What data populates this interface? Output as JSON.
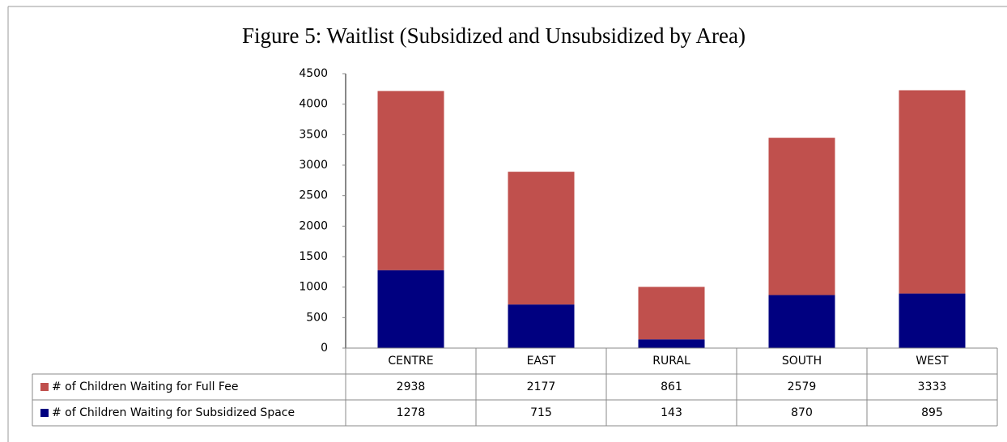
{
  "chart_data": {
    "type": "stacked_bar",
    "title": "Figure 5:  Waitlist (Subsidized and Unsubsidized by Area)",
    "categories": [
      "CENTRE",
      "EAST",
      "RURAL",
      "SOUTH",
      "WEST"
    ],
    "series": [
      {
        "name": "# of Children Waiting for Full Fee",
        "color": "#c0504d",
        "values": [
          2938,
          2177,
          861,
          2579,
          3333
        ]
      },
      {
        "name": "# of Children Waiting for Subsidized Space",
        "color": "#000080",
        "values": [
          1278,
          715,
          143,
          870,
          895
        ]
      }
    ],
    "ylim": [
      0,
      4500
    ],
    "yticks": [
      0,
      500,
      1000,
      1500,
      2000,
      2500,
      3000,
      3500,
      4000,
      4500
    ],
    "grid": false
  }
}
